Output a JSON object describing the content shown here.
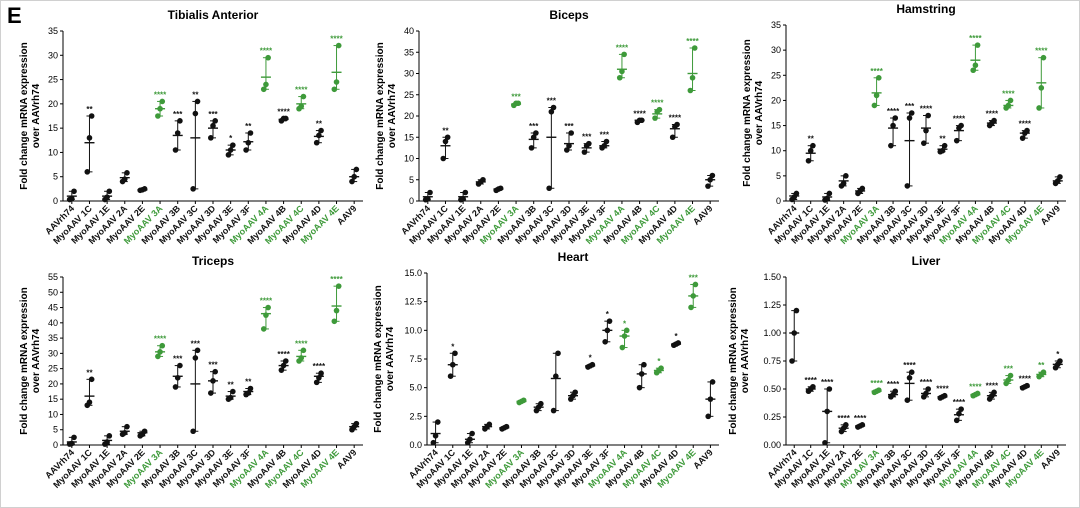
{
  "panel_label": "E",
  "colors": {
    "base": "#111111",
    "highlight": "#3e9a3a"
  },
  "categories": [
    "AAVrh74",
    "MyoAAV 1C",
    "MyoAAV 1E",
    "MyoAAV 2A",
    "MyoAAV 2E",
    "MyoAAV 3A",
    "MyoAAV 3B",
    "MyoAAV 3C",
    "MyoAAV 3D",
    "MyoAAV 3E",
    "MyoAAV 3F",
    "MyoAAV 4A",
    "MyoAAV 4B",
    "MyoAAV 4C",
    "MyoAAV 4D",
    "MyoAAV 4E",
    "AAV9"
  ],
  "category_colors": [
    "base",
    "base",
    "base",
    "base",
    "base",
    "highlight",
    "base",
    "base",
    "base",
    "base",
    "base",
    "highlight",
    "base",
    "highlight",
    "base",
    "highlight",
    "base"
  ],
  "chart_data": [
    {
      "type": "scatter",
      "title": "Tibialis Anterior",
      "ylabel": "Fold change mRNA expression over AAVrh74",
      "ylim": [
        0,
        35
      ],
      "yticks": [
        0,
        5,
        10,
        15,
        20,
        25,
        30,
        35
      ],
      "categories": [
        "AAVrh74",
        "MyoAAV 1C",
        "MyoAAV 1E",
        "MyoAAV 2A",
        "MyoAAV 2E",
        "MyoAAV 3A",
        "MyoAAV 3B",
        "MyoAAV 3C",
        "MyoAAV 3D",
        "MyoAAV 3E",
        "MyoAAV 3F",
        "MyoAAV 4A",
        "MyoAAV 4B",
        "MyoAAV 4C",
        "MyoAAV 4D",
        "MyoAAV 4E",
        "AAV9"
      ],
      "means": [
        1.0,
        12.0,
        1.0,
        4.8,
        2.3,
        19.0,
        13.5,
        13.0,
        15.0,
        10.5,
        12.2,
        25.5,
        16.8,
        20.0,
        13.3,
        26.5,
        5.0
      ],
      "points": [
        [
          0.3,
          0.5,
          2.0
        ],
        [
          6.0,
          13.0,
          17.5
        ],
        [
          0.3,
          0.8,
          2.0
        ],
        [
          4.0,
          4.5,
          5.8
        ],
        [
          2.2,
          2.3,
          2.5
        ],
        [
          17.5,
          19.0,
          20.5
        ],
        [
          10.5,
          14.0,
          16.5
        ],
        [
          2.5,
          18.0,
          20.5
        ],
        [
          13.0,
          15.5,
          16.5
        ],
        [
          9.5,
          10.5,
          11.5
        ],
        [
          10.5,
          12.0,
          14.0
        ],
        [
          23.0,
          24.0,
          29.5
        ],
        [
          16.5,
          17.0,
          17.0
        ],
        [
          19.0,
          19.5,
          21.5
        ],
        [
          12.0,
          13.5,
          14.5
        ],
        [
          23.0,
          24.5,
          32.0
        ],
        [
          4.0,
          5.0,
          6.5
        ]
      ],
      "sig": [
        "",
        "**",
        "",
        "",
        "",
        "****",
        "***",
        "**",
        "***",
        "*",
        "**",
        "****",
        "****",
        "****",
        "**",
        "****",
        ""
      ]
    },
    {
      "type": "scatter",
      "title": "Biceps",
      "ylabel": "Fold change mRNA expression over AAVrh74",
      "ylim": [
        0,
        40
      ],
      "yticks": [
        0,
        5,
        10,
        15,
        20,
        25,
        30,
        35,
        40
      ],
      "categories": [
        "AAVrh74",
        "MyoAAV 1C",
        "MyoAAV 1E",
        "MyoAAV 2A",
        "MyoAAV 2E",
        "MyoAAV 3A",
        "MyoAAV 3B",
        "MyoAAV 3C",
        "MyoAAV 3D",
        "MyoAAV 3E",
        "MyoAAV 3F",
        "MyoAAV 4A",
        "MyoAAV 4B",
        "MyoAAV 4C",
        "MyoAAV 4D",
        "MyoAAV 4E",
        "AAV9"
      ],
      "means": [
        1.0,
        13.0,
        1.0,
        4.5,
        2.8,
        22.8,
        14.5,
        15.0,
        13.5,
        12.5,
        13.0,
        31.0,
        19.0,
        20.5,
        17.0,
        30.0,
        5.0
      ],
      "points": [
        [
          0.3,
          0.5,
          2.0
        ],
        [
          10.0,
          14.0,
          15.0
        ],
        [
          0.3,
          0.5,
          2.0
        ],
        [
          4.0,
          4.5,
          5.0
        ],
        [
          2.5,
          2.8,
          3.0
        ],
        [
          22.5,
          23.0,
          23.0
        ],
        [
          12.5,
          15.0,
          16.0
        ],
        [
          3.0,
          21.0,
          22.0
        ],
        [
          12.0,
          13.0,
          16.0
        ],
        [
          11.5,
          13.0,
          13.5
        ],
        [
          12.5,
          13.0,
          14.0
        ],
        [
          29.0,
          30.5,
          34.5
        ],
        [
          18.5,
          19.0,
          19.0
        ],
        [
          19.5,
          21.0,
          21.5
        ],
        [
          15.0,
          17.5,
          18.0
        ],
        [
          26.0,
          29.0,
          36.0
        ],
        [
          3.5,
          5.0,
          6.0
        ]
      ],
      "sig": [
        "",
        "**",
        "",
        "",
        "",
        "***",
        "***",
        "***",
        "***",
        "***",
        "***",
        "****",
        "****",
        "****",
        "****",
        "****",
        ""
      ]
    },
    {
      "type": "scatter",
      "title": "Hamstring",
      "ylabel": "Fold change mRNA expression over AAVrh74",
      "ylim": [
        0,
        35
      ],
      "yticks": [
        0,
        5,
        10,
        15,
        20,
        25,
        30,
        35
      ],
      "categories": [
        "AAVrh74",
        "MyoAAV 1C",
        "MyoAAV 1E",
        "MyoAAV 2A",
        "MyoAAV 2E",
        "MyoAAV 3A",
        "MyoAAV 3B",
        "MyoAAV 3C",
        "MyoAAV 3D",
        "MyoAAV 3E",
        "MyoAAV 3F",
        "MyoAAV 4A",
        "MyoAAV 4B",
        "MyoAAV 4C",
        "MyoAAV 4D",
        "MyoAAV 4E",
        "AAV9"
      ],
      "means": [
        1.0,
        9.5,
        0.8,
        4.0,
        2.0,
        21.5,
        14.5,
        12.0,
        14.5,
        10.3,
        14.0,
        28.0,
        15.5,
        19.0,
        13.5,
        23.5,
        4.0
      ],
      "points": [
        [
          0.3,
          0.8,
          1.5
        ],
        [
          8.0,
          10.0,
          11.0
        ],
        [
          0.2,
          0.5,
          1.5
        ],
        [
          3.0,
          3.5,
          5.0
        ],
        [
          1.5,
          2.0,
          2.5
        ],
        [
          19.0,
          21.0,
          24.5
        ],
        [
          11.0,
          15.0,
          16.5
        ],
        [
          3.0,
          16.5,
          17.5
        ],
        [
          11.5,
          14.0,
          17.0
        ],
        [
          9.8,
          10.0,
          11.0
        ],
        [
          12.0,
          14.5,
          15.0
        ],
        [
          26.0,
          27.0,
          31.0
        ],
        [
          15.0,
          15.5,
          16.0
        ],
        [
          18.5,
          19.0,
          20.0
        ],
        [
          12.5,
          13.5,
          14.0
        ],
        [
          18.5,
          22.5,
          28.5
        ],
        [
          3.5,
          4.0,
          4.8
        ]
      ],
      "sig": [
        "",
        "**",
        "",
        "",
        "",
        "****",
        "****",
        "***",
        "****",
        "**",
        "****",
        "****",
        "****",
        "****",
        "****",
        "****",
        ""
      ]
    },
    {
      "type": "scatter",
      "title": "Triceps",
      "ylabel": "Fold change mRNA expression over AAVrh74",
      "ylim": [
        0,
        55
      ],
      "yticks": [
        0,
        5,
        10,
        15,
        20,
        25,
        30,
        35,
        40,
        45,
        50,
        55
      ],
      "categories": [
        "AAVrh74",
        "MyoAAV 1C",
        "MyoAAV 1E",
        "MyoAAV 2A",
        "MyoAAV 2E",
        "MyoAAV 3A",
        "MyoAAV 3B",
        "MyoAAV 3C",
        "MyoAAV 3D",
        "MyoAAV 3E",
        "MyoAAV 3F",
        "MyoAAV 4A",
        "MyoAAV 4B",
        "MyoAAV 4C",
        "MyoAAV 4D",
        "MyoAAV 4E",
        "AAV9"
      ],
      "means": [
        1.0,
        16.0,
        1.5,
        4.5,
        4.0,
        30.5,
        22.5,
        20.0,
        21.0,
        16.0,
        17.5,
        43.0,
        26.0,
        29.0,
        22.5,
        45.5,
        6.0
      ],
      "points": [
        [
          0.3,
          0.5,
          2.5
        ],
        [
          13.0,
          14.0,
          21.5
        ],
        [
          0.3,
          1.0,
          3.0
        ],
        [
          3.5,
          4.0,
          6.0
        ],
        [
          3.0,
          3.5,
          4.5
        ],
        [
          29.0,
          30.5,
          32.5
        ],
        [
          19.0,
          22.0,
          26.0
        ],
        [
          4.5,
          28.5,
          31.0
        ],
        [
          17.0,
          21.0,
          24.0
        ],
        [
          15.0,
          15.5,
          17.5
        ],
        [
          16.5,
          17.0,
          18.5
        ],
        [
          38.0,
          42.5,
          45.0
        ],
        [
          24.5,
          26.0,
          27.5
        ],
        [
          27.5,
          28.5,
          31.0
        ],
        [
          20.5,
          22.0,
          23.5
        ],
        [
          40.5,
          44.0,
          52.0
        ],
        [
          5.0,
          6.0,
          7.0
        ]
      ],
      "sig": [
        "",
        "**",
        "",
        "",
        "",
        "****",
        "***",
        "***",
        "***",
        "**",
        "**",
        "****",
        "****",
        "****",
        "****",
        "****",
        ""
      ]
    },
    {
      "type": "scatter",
      "title": "Heart",
      "ylabel": "Fold change mRNA expression over AAVrh74",
      "ylim": [
        0,
        15
      ],
      "yticks": [
        0.0,
        2.5,
        5.0,
        7.5,
        10.0,
        12.5,
        15.0
      ],
      "categories": [
        "AAVrh74",
        "MyoAAV 1C",
        "MyoAAV 1E",
        "MyoAAV 2A",
        "MyoAAV 2E",
        "MyoAAV 3A",
        "MyoAAV 3B",
        "MyoAAV 3C",
        "MyoAAV 3D",
        "MyoAAV 3E",
        "MyoAAV 3F",
        "MyoAAV 4A",
        "MyoAAV 4B",
        "MyoAAV 4C",
        "MyoAAV 4D",
        "MyoAAV 4E",
        "AAV9"
      ],
      "means": [
        1.0,
        7.0,
        0.5,
        1.6,
        1.5,
        3.8,
        3.3,
        5.8,
        4.3,
        6.9,
        10.0,
        9.5,
        6.2,
        6.5,
        8.8,
        13.0,
        4.0
      ],
      "points": [
        [
          0.2,
          0.8,
          2.0
        ],
        [
          6.0,
          7.0,
          8.0
        ],
        [
          0.2,
          0.5,
          1.0
        ],
        [
          1.4,
          1.6,
          1.8
        ],
        [
          1.4,
          1.5,
          1.6
        ],
        [
          3.7,
          3.8,
          3.9
        ],
        [
          3.0,
          3.3,
          3.6
        ],
        [
          3.0,
          6.0,
          8.0
        ],
        [
          4.0,
          4.3,
          4.6
        ],
        [
          6.8,
          6.9,
          7.0
        ],
        [
          9.0,
          10.0,
          10.8
        ],
        [
          8.5,
          9.5,
          10.0
        ],
        [
          5.0,
          6.2,
          7.0
        ],
        [
          6.3,
          6.5,
          6.7
        ],
        [
          8.7,
          8.8,
          8.9
        ],
        [
          12.0,
          13.0,
          14.0
        ],
        [
          2.5,
          4.0,
          5.5
        ]
      ],
      "sig": [
        "",
        "*",
        "",
        "",
        "",
        "",
        "",
        "",
        "",
        "*",
        "*",
        "*",
        "",
        "*",
        "*",
        "***",
        ""
      ]
    },
    {
      "type": "scatter",
      "title": "Liver",
      "ylabel": "Fold change mRNA expression over AAVrh74",
      "ylim": [
        0,
        1.5
      ],
      "yticks": [
        0.0,
        0.25,
        0.5,
        0.75,
        1.0,
        1.25,
        1.5
      ],
      "categories": [
        "AAVrh74",
        "MyoAAV 1C",
        "MyoAAV 1E",
        "MyoAAV 2A",
        "MyoAAV 2E",
        "MyoAAV 3A",
        "MyoAAV 3B",
        "MyoAAV 3C",
        "MyoAAV 3D",
        "MyoAAV 3E",
        "MyoAAV 3F",
        "MyoAAV 4A",
        "MyoAAV 4B",
        "MyoAAV 4C",
        "MyoAAV 4D",
        "MyoAAV 4E",
        "AAV9"
      ],
      "means": [
        1.0,
        0.5,
        0.3,
        0.15,
        0.17,
        0.48,
        0.45,
        0.55,
        0.46,
        0.43,
        0.27,
        0.45,
        0.44,
        0.58,
        0.52,
        0.63,
        0.72
      ],
      "points": [
        [
          0.75,
          1.0,
          1.2
        ],
        [
          0.48,
          0.5,
          0.52
        ],
        [
          0.02,
          0.3,
          0.5
        ],
        [
          0.12,
          0.15,
          0.18
        ],
        [
          0.16,
          0.17,
          0.18
        ],
        [
          0.47,
          0.48,
          0.49
        ],
        [
          0.43,
          0.45,
          0.48
        ],
        [
          0.4,
          0.6,
          0.65
        ],
        [
          0.43,
          0.46,
          0.5
        ],
        [
          0.42,
          0.43,
          0.44
        ],
        [
          0.22,
          0.28,
          0.32
        ],
        [
          0.44,
          0.45,
          0.46
        ],
        [
          0.41,
          0.44,
          0.47
        ],
        [
          0.55,
          0.58,
          0.62
        ],
        [
          0.51,
          0.52,
          0.53
        ],
        [
          0.61,
          0.63,
          0.65
        ],
        [
          0.69,
          0.72,
          0.75
        ]
      ],
      "sig": [
        "",
        "****",
        "****",
        "****",
        "****",
        "****",
        "****",
        "****",
        "****",
        "****",
        "****",
        "****",
        "****",
        "***",
        "****",
        "**",
        "*"
      ]
    }
  ]
}
